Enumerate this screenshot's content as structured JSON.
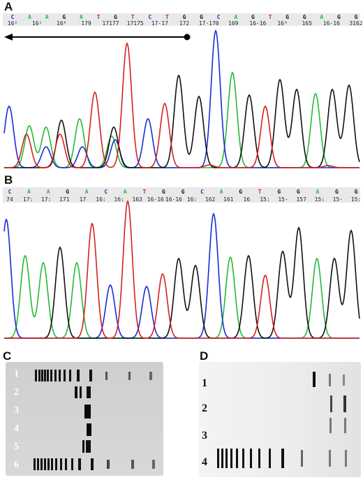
{
  "panels": {
    "A": {
      "label": "A",
      "bases": [
        "C",
        "A",
        "A",
        "G",
        "A",
        "T",
        "G",
        "T",
        "C",
        "T",
        "G",
        "G",
        "C",
        "A",
        "G",
        "T",
        "G",
        "G",
        "A",
        "G",
        "G"
      ],
      "positions": [
        "162",
        "161",
        "160",
        "179",
        "177",
        "175",
        "171",
        "170",
        "169",
        "168",
        "166",
        "165",
        "164",
        "163",
        "162"
      ],
      "position_text": [
        "16²",
        "16¹",
        "16⁰",
        "179",
        "17177",
        "17175",
        "17·17",
        "172",
        "17·170",
        "169",
        "16·16",
        "16⁸",
        "165",
        "16·16",
        "3162"
      ]
    },
    "B": {
      "label": "B",
      "bases": [
        "C",
        "A",
        "A",
        "G",
        "A",
        "C",
        "A",
        "T",
        "G",
        "G",
        "C",
        "A",
        "G",
        "T",
        "G",
        "G",
        "A",
        "G",
        "G"
      ],
      "position_text": [
        "74",
        "17:",
        "17:",
        "171",
        "17",
        "16:",
        "16:",
        "163",
        "16·16",
        "16·16",
        "16:",
        "162",
        "161",
        "16",
        "15:",
        "15·",
        "157",
        "15:",
        "15·",
        "15:"
      ]
    },
    "C": {
      "label": "C",
      "lanes": [
        "1",
        "2",
        "3",
        "4",
        "5",
        "6"
      ]
    },
    "D": {
      "label": "D",
      "lanes": [
        "1",
        "2",
        "3",
        "4"
      ]
    }
  },
  "colors": {
    "A": "#22bb33",
    "C": "#1a2bd6",
    "G": "#111111",
    "T": "#d62020"
  }
}
